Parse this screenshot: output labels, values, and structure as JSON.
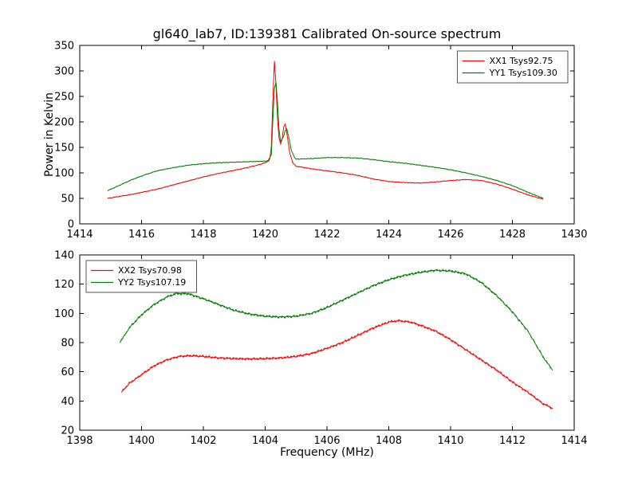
{
  "figure": {
    "background": "#ffffff",
    "axis_color": "#000000"
  },
  "chart_data": [
    {
      "type": "line",
      "title": "gl640_lab7, ID:139381 Calibrated On-source spectrum",
      "xlabel": "",
      "ylabel": "Power in Kelvin",
      "xlim": [
        1414,
        1430
      ],
      "ylim": [
        0,
        350
      ],
      "xticks": [
        1414,
        1416,
        1418,
        1420,
        1422,
        1424,
        1426,
        1428,
        1430
      ],
      "yticks": [
        0,
        50,
        100,
        150,
        200,
        250,
        300,
        350
      ],
      "grid": false,
      "noise_amplitude": 0.8,
      "legend": {
        "position": "top-right",
        "entries": [
          {
            "label": "XX1 Tsys92.75",
            "color": "#ff0000"
          },
          {
            "label": "YY1 Tsys109.30",
            "color": "#008000"
          }
        ]
      },
      "series": [
        {
          "name": "XX1 Tsys92.75",
          "color": "#ff0000",
          "points": [
            [
              1414.9,
              50
            ],
            [
              1415.3,
              54
            ],
            [
              1415.7,
              58
            ],
            [
              1416.1,
              63
            ],
            [
              1416.5,
              68
            ],
            [
              1417,
              76
            ],
            [
              1417.5,
              84
            ],
            [
              1418,
              92
            ],
            [
              1418.5,
              99
            ],
            [
              1419,
              105
            ],
            [
              1419.4,
              110
            ],
            [
              1419.8,
              116
            ],
            [
              1420,
              120
            ],
            [
              1420.1,
              123
            ],
            [
              1420.15,
              127
            ],
            [
              1420.2,
              152
            ],
            [
              1420.25,
              245
            ],
            [
              1420.3,
              320
            ],
            [
              1420.35,
              272
            ],
            [
              1420.4,
              205
            ],
            [
              1420.45,
              168
            ],
            [
              1420.5,
              157
            ],
            [
              1420.55,
              166
            ],
            [
              1420.6,
              190
            ],
            [
              1420.65,
              196
            ],
            [
              1420.7,
              178
            ],
            [
              1420.8,
              138
            ],
            [
              1420.9,
              119
            ],
            [
              1421,
              113
            ],
            [
              1421.5,
              108
            ],
            [
              1422,
              104
            ],
            [
              1422.5,
              100
            ],
            [
              1423,
              95
            ],
            [
              1423.5,
              88
            ],
            [
              1424,
              83
            ],
            [
              1424.5,
              81
            ],
            [
              1425,
              80
            ],
            [
              1425.5,
              82
            ],
            [
              1426,
              85
            ],
            [
              1426.5,
              87
            ],
            [
              1427,
              85
            ],
            [
              1427.5,
              78
            ],
            [
              1428,
              68
            ],
            [
              1428.5,
              57
            ],
            [
              1429,
              48
            ]
          ]
        },
        {
          "name": "YY1 Tsys109.30",
          "color": "#008000",
          "points": [
            [
              1414.9,
              65
            ],
            [
              1415.3,
              76
            ],
            [
              1415.7,
              87
            ],
            [
              1416.1,
              96
            ],
            [
              1416.5,
              104
            ],
            [
              1417,
              110
            ],
            [
              1417.5,
              115
            ],
            [
              1418,
              118
            ],
            [
              1418.5,
              120
            ],
            [
              1419,
              121
            ],
            [
              1419.5,
              122
            ],
            [
              1420,
              123
            ],
            [
              1420.1,
              124
            ],
            [
              1420.2,
              136
            ],
            [
              1420.25,
              205
            ],
            [
              1420.3,
              266
            ],
            [
              1420.35,
              278
            ],
            [
              1420.4,
              238
            ],
            [
              1420.45,
              184
            ],
            [
              1420.5,
              161
            ],
            [
              1420.6,
              172
            ],
            [
              1420.65,
              183
            ],
            [
              1420.7,
              186
            ],
            [
              1420.75,
              174
            ],
            [
              1420.85,
              144
            ],
            [
              1420.95,
              130
            ],
            [
              1421,
              127
            ],
            [
              1421.5,
              128
            ],
            [
              1422,
              130
            ],
            [
              1422.5,
              130
            ],
            [
              1423,
              129
            ],
            [
              1423.5,
              126
            ],
            [
              1424,
              122
            ],
            [
              1424.5,
              119
            ],
            [
              1425,
              115
            ],
            [
              1425.5,
              111
            ],
            [
              1426,
              106
            ],
            [
              1426.5,
              100
            ],
            [
              1427,
              93
            ],
            [
              1427.5,
              85
            ],
            [
              1428,
              75
            ],
            [
              1428.5,
              62
            ],
            [
              1429,
              50
            ]
          ]
        }
      ]
    },
    {
      "type": "line",
      "title": "",
      "xlabel": "Frequency (MHz)",
      "ylabel": "",
      "xlim": [
        1398,
        1414
      ],
      "ylim": [
        20,
        140
      ],
      "xticks": [
        1398,
        1400,
        1402,
        1404,
        1406,
        1408,
        1410,
        1412,
        1414
      ],
      "yticks": [
        20,
        40,
        60,
        80,
        100,
        120,
        140
      ],
      "grid": false,
      "noise_amplitude": 0.8,
      "legend": {
        "position": "top-left",
        "entries": [
          {
            "label": "XX2 Tsys70.98",
            "color": "#ff0000"
          },
          {
            "label": "YY2 Tsys107.19",
            "color": "#008000"
          }
        ]
      },
      "series": [
        {
          "name": "XX2 Tsys70.98",
          "color": "#ff0000",
          "points": [
            [
              1399.35,
              46
            ],
            [
              1399.6,
              52
            ],
            [
              1400,
              58
            ],
            [
              1400.4,
              64
            ],
            [
              1400.8,
              68
            ],
            [
              1401.2,
              70.5
            ],
            [
              1401.6,
              71
            ],
            [
              1402,
              70.5
            ],
            [
              1402.5,
              69.5
            ],
            [
              1403,
              69
            ],
            [
              1403.5,
              68.8
            ],
            [
              1404,
              69
            ],
            [
              1404.5,
              69.5
            ],
            [
              1405,
              70.5
            ],
            [
              1405.5,
              72.5
            ],
            [
              1406,
              76
            ],
            [
              1406.5,
              80
            ],
            [
              1407,
              85
            ],
            [
              1407.5,
              90
            ],
            [
              1408,
              94
            ],
            [
              1408.3,
              95
            ],
            [
              1408.7,
              94
            ],
            [
              1409,
              92
            ],
            [
              1409.5,
              88
            ],
            [
              1410,
              82
            ],
            [
              1410.5,
              75
            ],
            [
              1411,
              68
            ],
            [
              1411.5,
              61
            ],
            [
              1412,
              53
            ],
            [
              1412.5,
              46
            ],
            [
              1413,
              38
            ],
            [
              1413.3,
              35
            ]
          ]
        },
        {
          "name": "YY2 Tsys107.19",
          "color": "#008000",
          "points": [
            [
              1399.3,
              80
            ],
            [
              1399.6,
              90
            ],
            [
              1400,
              99
            ],
            [
              1400.4,
              106
            ],
            [
              1400.8,
              111
            ],
            [
              1401.1,
              113.5
            ],
            [
              1401.5,
              113.5
            ],
            [
              1402,
              110
            ],
            [
              1402.5,
              106
            ],
            [
              1403,
              102
            ],
            [
              1403.5,
              99.5
            ],
            [
              1404,
              98
            ],
            [
              1404.5,
              97.5
            ],
            [
              1405,
              98
            ],
            [
              1405.5,
              100
            ],
            [
              1406,
              104
            ],
            [
              1406.5,
              109
            ],
            [
              1407,
              114
            ],
            [
              1407.5,
              119
            ],
            [
              1408,
              123
            ],
            [
              1408.5,
              126
            ],
            [
              1409,
              128
            ],
            [
              1409.5,
              129.5
            ],
            [
              1410,
              129
            ],
            [
              1410.5,
              127
            ],
            [
              1411,
              121
            ],
            [
              1411.5,
              112
            ],
            [
              1412,
              101
            ],
            [
              1412.5,
              88
            ],
            [
              1413,
              70
            ],
            [
              1413.3,
              61
            ]
          ]
        }
      ]
    }
  ]
}
